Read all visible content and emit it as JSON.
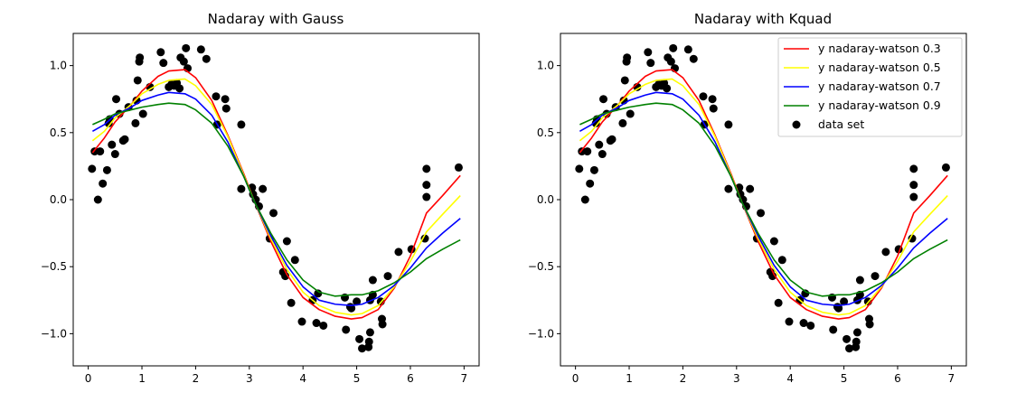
{
  "chart_data": [
    {
      "type": "line",
      "title": "Nadaray with Gauss",
      "xlabel": "",
      "ylabel": "",
      "xlim": [
        -0.28,
        7.28
      ],
      "ylim": [
        -1.24,
        1.24
      ],
      "xticks": [
        0,
        1,
        2,
        3,
        4,
        5,
        6,
        7
      ],
      "yticks": [
        -1.0,
        -0.5,
        0.0,
        0.5,
        1.0
      ],
      "xtick_labels": [
        "0",
        "1",
        "2",
        "3",
        "4",
        "5",
        "6",
        "7"
      ],
      "ytick_labels": [
        "−1.0",
        "−0.5",
        "0.0",
        "0.5",
        "1.0"
      ],
      "grid": false,
      "legend": false,
      "series_ref": "shared"
    },
    {
      "type": "line",
      "title": "Nadaray with Kquad",
      "xlabel": "",
      "ylabel": "",
      "xlim": [
        -0.28,
        7.28
      ],
      "ylim": [
        -1.24,
        1.24
      ],
      "xticks": [
        0,
        1,
        2,
        3,
        4,
        5,
        6,
        7
      ],
      "yticks": [
        -1.0,
        -0.5,
        0.0,
        0.5,
        1.0
      ],
      "xtick_labels": [
        "0",
        "1",
        "2",
        "3",
        "4",
        "5",
        "6",
        "7"
      ],
      "ytick_labels": [
        "−1.0",
        "−0.5",
        "0.0",
        "0.5",
        "1.0"
      ],
      "grid": false,
      "legend": true,
      "legend_position": "top-right",
      "series_ref": "shared"
    }
  ],
  "shared": {
    "x": [
      0.08,
      0.3,
      0.5,
      0.8,
      1.0,
      1.3,
      1.5,
      1.8,
      2.0,
      2.3,
      2.6,
      2.9,
      3.1,
      3.4,
      3.7,
      4.0,
      4.3,
      4.6,
      4.9,
      5.1,
      5.4,
      5.7,
      6.0,
      6.3,
      6.6,
      6.93
    ],
    "series": [
      {
        "name": "y nadaray-watson 0.3",
        "color": "#ff0000",
        "values": [
          0.35,
          0.46,
          0.58,
          0.71,
          0.81,
          0.92,
          0.96,
          0.97,
          0.91,
          0.74,
          0.48,
          0.19,
          -0.02,
          -0.31,
          -0.56,
          -0.73,
          -0.82,
          -0.87,
          -0.89,
          -0.88,
          -0.82,
          -0.66,
          -0.42,
          -0.1,
          0.03,
          0.18
        ]
      },
      {
        "name": "y nadaray-watson 0.5",
        "color": "#ffff00",
        "values": [
          0.44,
          0.51,
          0.61,
          0.71,
          0.79,
          0.86,
          0.89,
          0.9,
          0.85,
          0.71,
          0.47,
          0.18,
          -0.02,
          -0.29,
          -0.52,
          -0.69,
          -0.79,
          -0.84,
          -0.86,
          -0.85,
          -0.79,
          -0.65,
          -0.46,
          -0.24,
          -0.11,
          0.03
        ]
      },
      {
        "name": "y nadaray-watson 0.7",
        "color": "#0000ff",
        "values": [
          0.51,
          0.56,
          0.63,
          0.69,
          0.74,
          0.78,
          0.8,
          0.79,
          0.75,
          0.63,
          0.43,
          0.17,
          -0.02,
          -0.27,
          -0.49,
          -0.65,
          -0.75,
          -0.78,
          -0.79,
          -0.78,
          -0.73,
          -0.64,
          -0.51,
          -0.36,
          -0.25,
          -0.14
        ]
      },
      {
        "name": "y nadaray-watson 0.9",
        "color": "#008000",
        "values": [
          0.56,
          0.6,
          0.64,
          0.67,
          0.69,
          0.71,
          0.72,
          0.71,
          0.67,
          0.57,
          0.4,
          0.17,
          -0.02,
          -0.25,
          -0.45,
          -0.6,
          -0.69,
          -0.72,
          -0.71,
          -0.71,
          -0.68,
          -0.62,
          -0.54,
          -0.44,
          -0.37,
          -0.3
        ]
      }
    ],
    "scatter": {
      "name": "data set",
      "color": "#000000",
      "points": [
        [
          0.07,
          0.23
        ],
        [
          0.12,
          0.36
        ],
        [
          0.18,
          0.0
        ],
        [
          0.22,
          0.36
        ],
        [
          0.27,
          0.12
        ],
        [
          0.35,
          0.22
        ],
        [
          0.38,
          0.57
        ],
        [
          0.4,
          0.6
        ],
        [
          0.44,
          0.41
        ],
        [
          0.5,
          0.34
        ],
        [
          0.52,
          0.75
        ],
        [
          0.58,
          0.64
        ],
        [
          0.65,
          0.44
        ],
        [
          0.68,
          0.45
        ],
        [
          0.75,
          0.69
        ],
        [
          0.88,
          0.57
        ],
        [
          0.92,
          0.89
        ],
        [
          0.9,
          0.74
        ],
        [
          0.95,
          1.03
        ],
        [
          0.96,
          1.06
        ],
        [
          1.02,
          0.64
        ],
        [
          1.15,
          0.84
        ],
        [
          1.35,
          1.1
        ],
        [
          1.4,
          1.02
        ],
        [
          1.5,
          0.84
        ],
        [
          1.55,
          0.86
        ],
        [
          1.6,
          0.85
        ],
        [
          1.65,
          0.87
        ],
        [
          1.7,
          0.83
        ],
        [
          1.72,
          1.06
        ],
        [
          1.78,
          1.03
        ],
        [
          1.82,
          1.13
        ],
        [
          1.85,
          0.98
        ],
        [
          2.1,
          1.12
        ],
        [
          2.2,
          1.05
        ],
        [
          2.38,
          0.77
        ],
        [
          2.4,
          0.56
        ],
        [
          2.55,
          0.75
        ],
        [
          2.57,
          0.68
        ],
        [
          2.85,
          0.56
        ],
        [
          2.85,
          0.08
        ],
        [
          3.05,
          0.09
        ],
        [
          3.07,
          0.04
        ],
        [
          3.12,
          0.0
        ],
        [
          3.18,
          -0.05
        ],
        [
          3.25,
          0.08
        ],
        [
          3.38,
          -0.29
        ],
        [
          3.45,
          -0.1
        ],
        [
          3.63,
          -0.54
        ],
        [
          3.67,
          -0.57
        ],
        [
          3.7,
          -0.31
        ],
        [
          3.78,
          -0.77
        ],
        [
          3.85,
          -0.45
        ],
        [
          3.98,
          -0.91
        ],
        [
          4.18,
          -0.75
        ],
        [
          4.25,
          -0.92
        ],
        [
          4.28,
          -0.7
        ],
        [
          4.38,
          -0.94
        ],
        [
          4.78,
          -0.73
        ],
        [
          4.8,
          -0.97
        ],
        [
          4.88,
          -0.8
        ],
        [
          4.9,
          -0.81
        ],
        [
          5.0,
          -0.76
        ],
        [
          5.05,
          -1.04
        ],
        [
          5.1,
          -1.11
        ],
        [
          5.22,
          -1.1
        ],
        [
          5.23,
          -1.06
        ],
        [
          5.25,
          -0.99
        ],
        [
          5.25,
          -0.75
        ],
        [
          5.3,
          -0.6
        ],
        [
          5.3,
          -0.71
        ],
        [
          5.45,
          -0.76
        ],
        [
          5.47,
          -0.89
        ],
        [
          5.48,
          -0.93
        ],
        [
          5.58,
          -0.57
        ],
        [
          5.78,
          -0.39
        ],
        [
          6.02,
          -0.37
        ],
        [
          6.27,
          -0.29
        ],
        [
          6.3,
          0.02
        ],
        [
          6.3,
          0.11
        ],
        [
          6.3,
          0.23
        ],
        [
          6.9,
          0.24
        ]
      ]
    }
  }
}
